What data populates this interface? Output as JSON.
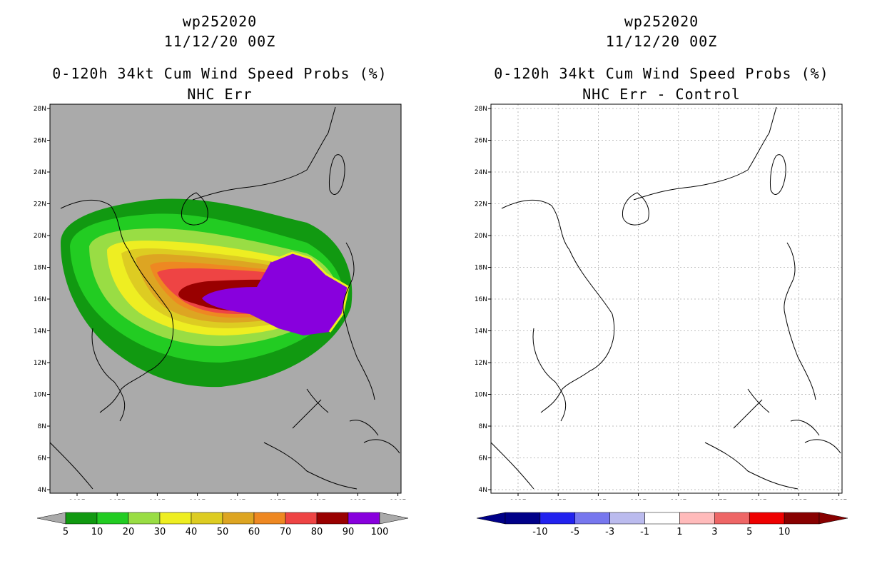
{
  "left_panel": {
    "title_lines": [
      "wp252020",
      "11/12/20 00Z",
      "0-120h 34kt Cum Wind Speed Probs (%)",
      "NHC Err"
    ],
    "colorbar": {
      "labels": [
        "5",
        "10",
        "20",
        "30",
        "40",
        "50",
        "60",
        "70",
        "80",
        "90",
        "100"
      ],
      "colors": [
        "#119911",
        "#22cc22",
        "#99dd44",
        "#eeee22",
        "#ddcc22",
        "#dda522",
        "#ee8822",
        "#ee4444",
        "#990000",
        "#8800dd"
      ]
    }
  },
  "right_panel": {
    "title_lines": [
      "wp252020",
      "11/12/20 00Z",
      "0-120h 34kt Cum Wind Speed Probs (%)",
      "NHC Err - Control"
    ],
    "colorbar": {
      "labels": [
        "-10",
        "-5",
        "-3",
        "-1",
        "1",
        "3",
        "5",
        "10"
      ],
      "colors": [
        "#000088",
        "#2222ee",
        "#7777ee",
        "#bbbbee",
        "#ffffff",
        "#ffbbbb",
        "#ee6666",
        "#ee0000",
        "#880000"
      ]
    }
  },
  "axes": {
    "lat_labels": [
      "28N",
      "26N",
      "24N",
      "22N",
      "20N",
      "18N",
      "16N",
      "14N",
      "12N",
      "10N",
      "8N",
      "6N",
      "4N"
    ],
    "lon_labels": [
      "102E",
      "105E",
      "108E",
      "111E",
      "114E",
      "117E",
      "120E",
      "123E",
      "126E"
    ]
  },
  "map": {
    "background_left": "#aaaaaa",
    "background_right": "#ffffff",
    "coast_color": "#000000"
  }
}
